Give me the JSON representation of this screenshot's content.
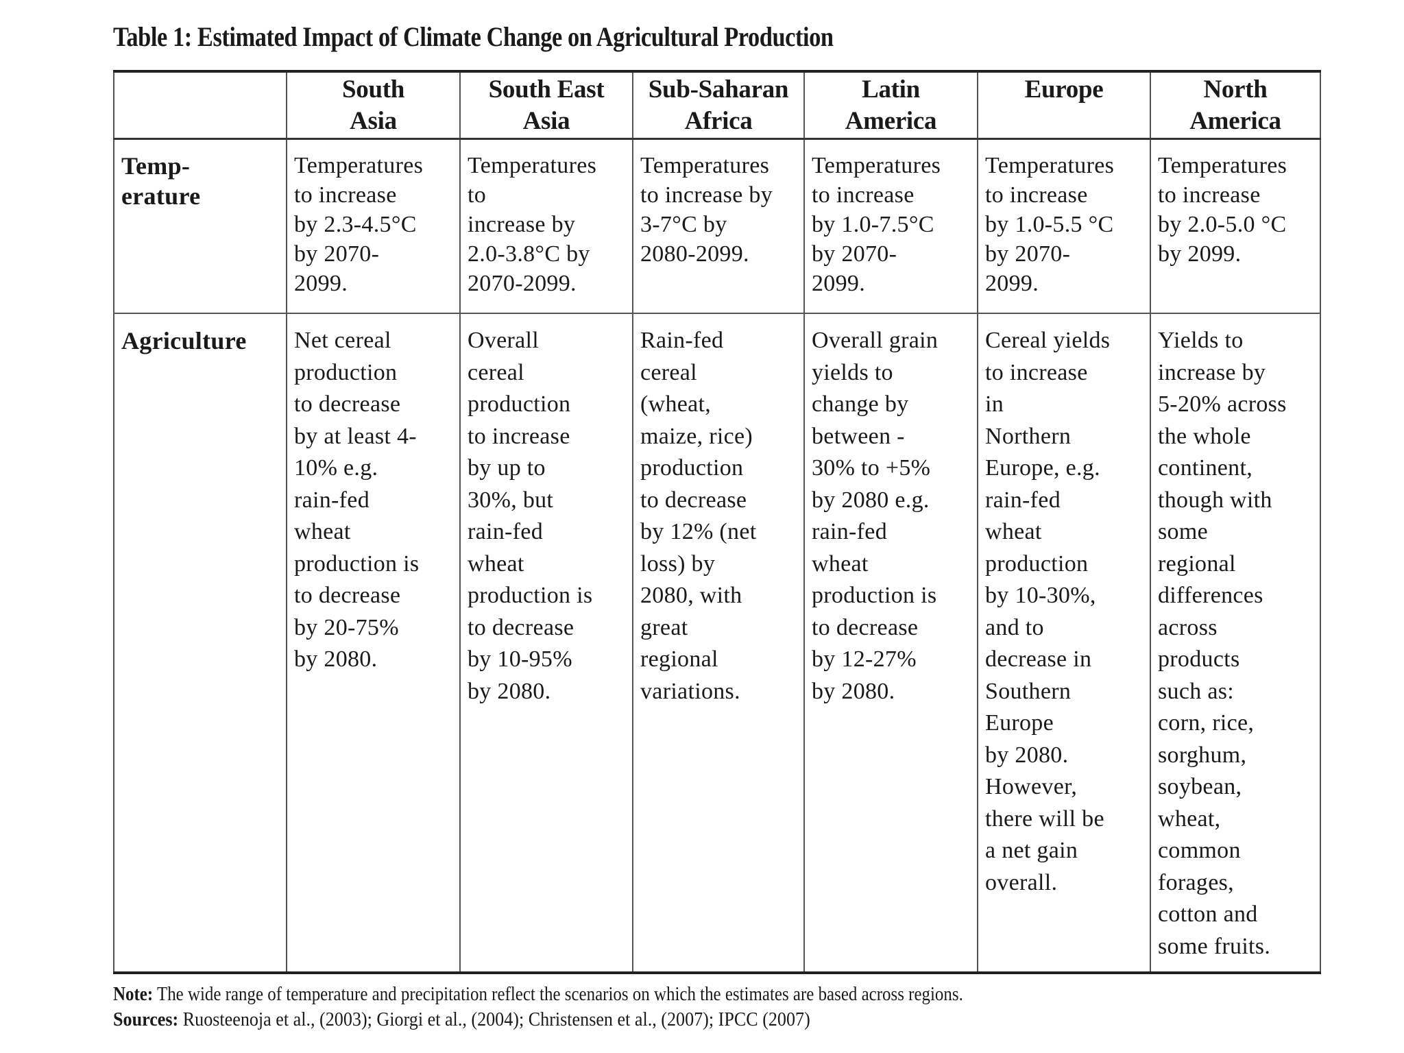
{
  "title": "Table 1: Estimated Impact of Climate Change on Agricultural Production",
  "table": {
    "headers": [
      "",
      "South\nAsia",
      "South  East\nAsia",
      "Sub-Saharan\nAfrica",
      "Latin\nAmerica",
      "Europe",
      "North\nAmerica"
    ],
    "rows": [
      {
        "label": "Temp-\nerature",
        "cells": [
          "Temperatures\nto increase\nby 2.3-4.5°C\nby 2070-\n2099.",
          "Temperatures\nto\nincrease by\n2.0-3.8°C by\n2070-2099.",
          "Temperatures\nto increase by\n3-7°C by\n2080-2099.",
          "Temperatures\nto increase\nby 1.0-7.5°C\nby 2070-\n2099.",
          "Temperatures\nto increase\nby 1.0-5.5 °C\nby 2070-\n2099.",
          "Temperatures\nto increase\nby 2.0-5.0 °C\nby 2099."
        ]
      },
      {
        "label": "Agriculture",
        "cells": [
          "Net cereal\nproduction\nto decrease\nby at least 4-\n10% e.g.\nrain-fed\nwheat\nproduction is\nto decrease\nby 20-75%\nby 2080.",
          "Overall\ncereal\nproduction\nto increase\nby up to\n30%, but\nrain-fed\nwheat\nproduction is\nto decrease\nby 10-95%\nby 2080.",
          "Rain-fed\ncereal\n(wheat,\nmaize, rice)\nproduction\nto decrease\nby 12% (net\nloss) by\n2080, with\ngreat\nregional\nvariations.",
          "Overall grain\nyields to\nchange by\nbetween -\n30% to +5%\nby 2080 e.g.\nrain-fed\nwheat\nproduction is\nto decrease\nby 12-27%\nby 2080.",
          "Cereal yields\nto increase\nin\nNorthern\nEurope, e.g.\nrain-fed\nwheat\nproduction\nby 10-30%,\nand to\ndecrease in\nSouthern\nEurope\nby 2080.\nHowever,\nthere will be\na net gain\noverall.",
          "Yields to\nincrease by\n5-20% across\nthe whole\ncontinent,\nthough with\nsome\nregional\ndifferences\nacross\nproducts\nsuch as:\ncorn, rice,\nsorghum,\nsoybean,\nwheat,\ncommon\nforages,\ncotton and\nsome fruits."
        ]
      }
    ]
  },
  "note": {
    "label": "Note:",
    "text": " The wide range of temperature and precipitation reflect the scenarios on which the estimates are based across regions."
  },
  "sources": {
    "label": "Sources:",
    "text": " Ruosteenoja et al., (2003); Giorgi et al., (2004); Christensen et al., (2007); IPCC (2007)"
  }
}
